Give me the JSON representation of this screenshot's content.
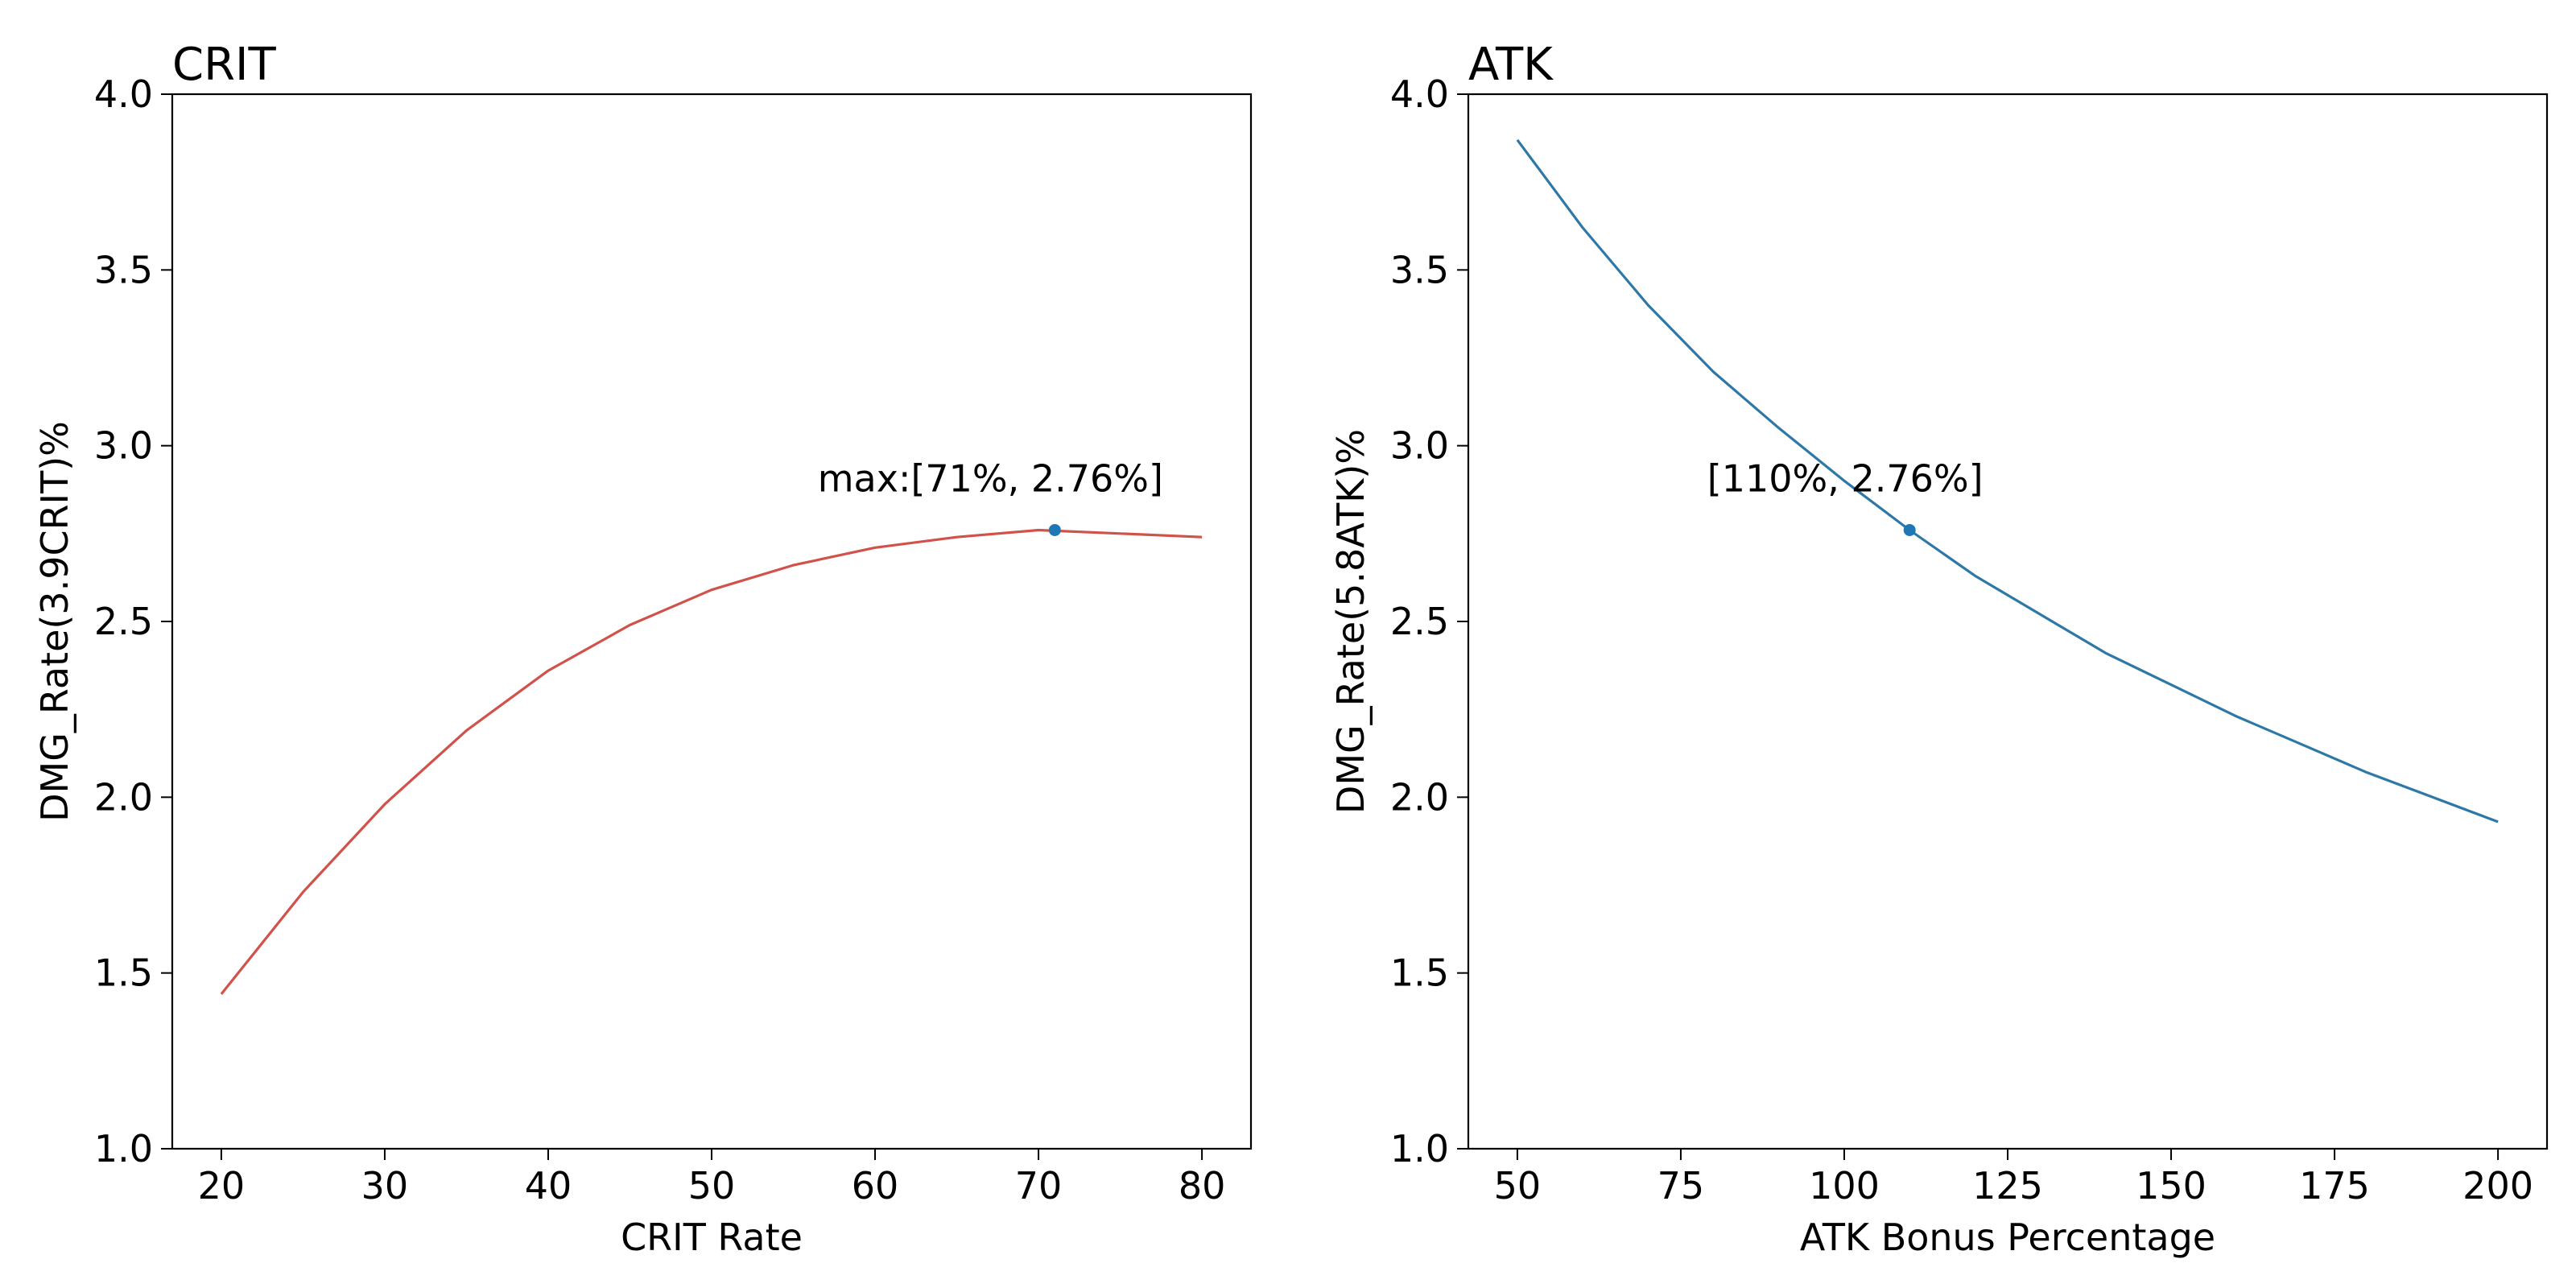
{
  "chart_data": [
    {
      "type": "line",
      "title": "CRIT",
      "xlabel": "CRIT Rate",
      "ylabel": "DMG_Rate(3.9CRIT)%",
      "xlim": [
        17,
        83
      ],
      "ylim": [
        1.0,
        4.0
      ],
      "xticks": [
        20,
        30,
        40,
        50,
        60,
        70,
        80
      ],
      "yticks": [
        1.0,
        1.5,
        2.0,
        2.5,
        3.0,
        3.5,
        4.0
      ],
      "line_color": "#d0524a",
      "series": [
        {
          "x": [
            20,
            25,
            30,
            35,
            40,
            45,
            50,
            55,
            60,
            65,
            70,
            75,
            80
          ],
          "values": [
            1.44,
            1.73,
            1.98,
            2.19,
            2.36,
            2.49,
            2.59,
            2.66,
            2.71,
            2.74,
            2.76,
            2.75,
            2.74
          ]
        }
      ],
      "marker": {
        "x": 71,
        "y": 2.76,
        "color": "#1f77b4"
      },
      "annotation": {
        "text": "max:[71%, 2.76%]",
        "x": 71,
        "y": 2.76
      }
    },
    {
      "type": "line",
      "title": "ATK",
      "xlabel": "ATK Bonus Percentage",
      "ylabel": "DMG_Rate(5.8ATK)%",
      "xlim": [
        42.5,
        207.5
      ],
      "ylim": [
        1.0,
        4.0
      ],
      "xticks": [
        50,
        75,
        100,
        125,
        150,
        175,
        200
      ],
      "yticks": [
        1.0,
        1.5,
        2.0,
        2.5,
        3.0,
        3.5,
        4.0
      ],
      "line_color": "#2e78a8",
      "series": [
        {
          "x": [
            50,
            60,
            70,
            80,
            90,
            100,
            110,
            120,
            130,
            140,
            150,
            160,
            170,
            180,
            190,
            200
          ],
          "values": [
            3.87,
            3.62,
            3.4,
            3.21,
            3.05,
            2.9,
            2.76,
            2.63,
            2.52,
            2.41,
            2.32,
            2.23,
            2.15,
            2.07,
            2.0,
            1.93
          ]
        }
      ],
      "marker": {
        "x": 110,
        "y": 2.76,
        "color": "#1f77b4"
      },
      "annotation": {
        "text": "[110%, 2.76%]",
        "x": 110,
        "y": 2.76
      }
    }
  ]
}
